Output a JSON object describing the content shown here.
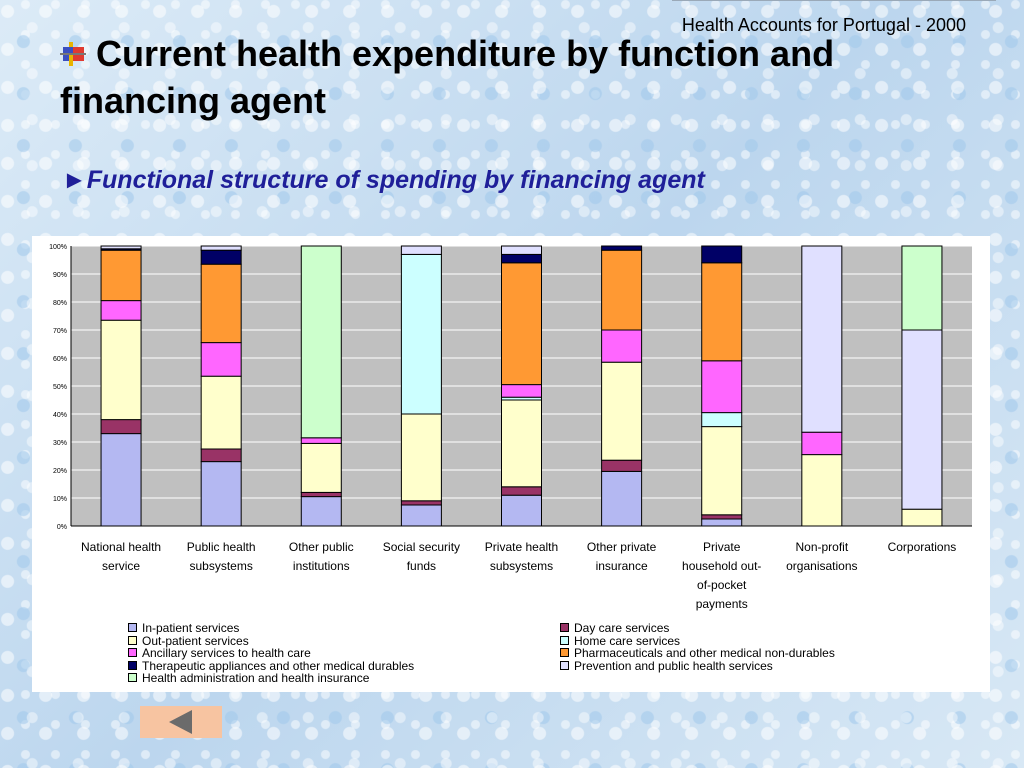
{
  "header": {
    "note": "Health Accounts for Portugal - 2000"
  },
  "slide": {
    "title": "Current health expenditure by function and financing agent",
    "subtitle_marker": "►",
    "subtitle": "Functional structure of spending by financing agent"
  },
  "colors": {
    "in_patient": "#b4b8f2",
    "day_care": "#993366",
    "out_patient": "#ffffcc",
    "home_care": "#ccffff",
    "ancillary": "#ff66ff",
    "pharmaceuticals": "#ff9933",
    "therapeutic": "#000066",
    "prevention": "#e0e0ff",
    "administration": "#ccffcc",
    "plot_background": "#c0c0c0"
  },
  "chart_data": {
    "type": "bar",
    "stacked": true,
    "percent": true,
    "ylim": [
      0,
      100
    ],
    "yticks": [
      "0%",
      "10%",
      "20%",
      "30%",
      "40%",
      "50%",
      "60%",
      "70%",
      "80%",
      "90%",
      "100%"
    ],
    "grid": true,
    "legend_position": "bottom",
    "categories": [
      [
        "National health",
        "service"
      ],
      [
        "Public health",
        "subsystems"
      ],
      [
        "Other public",
        "institutions"
      ],
      [
        "Social security",
        "funds"
      ],
      [
        "Private health",
        "subsystems"
      ],
      [
        "Other private",
        "insurance"
      ],
      [
        "Private",
        "household out-",
        "of-pocket",
        "payments"
      ],
      [
        "Non-profit",
        "organisations"
      ],
      [
        "Corporations"
      ]
    ],
    "series": [
      {
        "name": "In-patient services",
        "color_key": "in_patient",
        "values": [
          33,
          23,
          10.5,
          7.5,
          11,
          19.5,
          2.5,
          0,
          0
        ]
      },
      {
        "name": "Day care services",
        "color_key": "day_care",
        "values": [
          5,
          4.5,
          1.5,
          1.5,
          3,
          4,
          1.5,
          0,
          0
        ]
      },
      {
        "name": "Out-patient services",
        "color_key": "out_patient",
        "values": [
          35.5,
          26,
          17.5,
          31,
          31,
          35,
          31.5,
          25.5,
          6
        ]
      },
      {
        "name": "Home care services",
        "color_key": "home_care",
        "values": [
          0,
          0,
          0,
          57,
          1,
          0,
          5,
          0,
          0
        ]
      },
      {
        "name": "Ancillary services to health care",
        "color_key": "ancillary",
        "values": [
          7,
          12,
          2,
          0,
          4.5,
          11.5,
          18.5,
          8,
          0
        ]
      },
      {
        "name": "Pharmaceuticals and other medical non-durables",
        "color_key": "pharmaceuticals",
        "values": [
          18,
          28,
          0,
          0,
          43.5,
          28.5,
          35,
          0,
          0
        ]
      },
      {
        "name": "Therapeutic appliances and other medical durables",
        "color_key": "therapeutic",
        "values": [
          0.5,
          5,
          0,
          0,
          3,
          1.5,
          6,
          0,
          0
        ]
      },
      {
        "name": "Prevention and public health services",
        "color_key": "prevention",
        "values": [
          1,
          1.5,
          0,
          3,
          3,
          0,
          0,
          66.5,
          64
        ]
      },
      {
        "name": "Health administration and health insurance",
        "color_key": "administration",
        "values": [
          0,
          0,
          68.5,
          0,
          0,
          0,
          0,
          0,
          30
        ]
      }
    ]
  },
  "nav": {
    "icon": "left-arrow-icon"
  }
}
